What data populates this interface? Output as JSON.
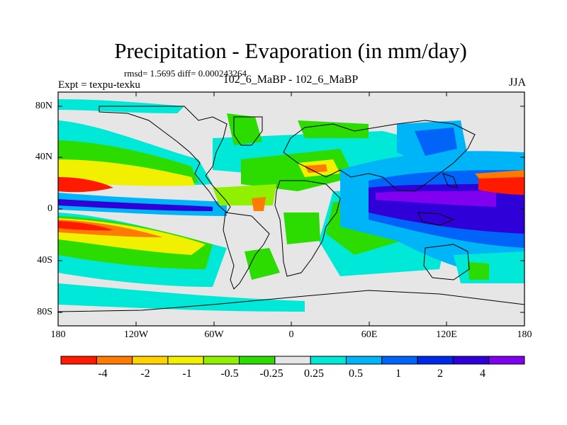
{
  "title": "Precipitation - Evaporation (in mm/day)",
  "subtitle": "rmsd= 1.5695 diff= 0.000243264",
  "experiment": "Expt = texpu-texku",
  "center_label": "102_6_MaBP - 102_6_MaBP",
  "season": "JJA",
  "axes": {
    "y_ticks": [
      "80N",
      "40N",
      "0",
      "40S",
      "80S"
    ],
    "x_ticks": [
      "180",
      "120W",
      "60W",
      "0",
      "60E",
      "120E",
      "180"
    ]
  },
  "colorbar": {
    "colors": [
      "#ff1a00",
      "#ff7a00",
      "#ffd200",
      "#f0f000",
      "#90f000",
      "#2cdc00",
      "#e6e6e6",
      "#00e8d8",
      "#00b4f8",
      "#0064f8",
      "#0028e8",
      "#3000d8",
      "#8000f0"
    ],
    "labels": [
      "-4",
      "-2",
      "-1",
      "-0.5",
      "-0.25",
      "0.25",
      "0.5",
      "1",
      "2",
      "4"
    ]
  },
  "colors": {
    "land_outline": "#000000",
    "background": "#e6e6e6"
  }
}
